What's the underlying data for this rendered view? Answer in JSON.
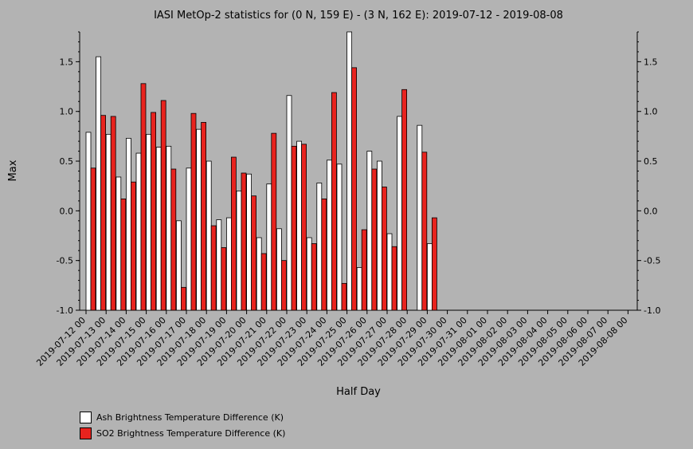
{
  "chart_data": {
    "type": "bar",
    "title": "IASI MetOp-2 statistics for (0 N, 159 E) - (3 N, 162 E): 2019-07-12 - 2019-08-08",
    "xlabel": "Half Day",
    "ylabel": "Max",
    "ylim": [
      -1.0,
      1.8
    ],
    "yticks": [
      -1.0,
      -0.5,
      0.0,
      0.5,
      1.0,
      1.5
    ],
    "ytick_labels": [
      "-1.0",
      "-0.5",
      "0.0",
      "0.5",
      "1.0",
      "1.5"
    ],
    "grid": false,
    "legend_position": "bottom-left",
    "x_ticks": [
      "2019-07-12 00",
      "2019-07-13 00",
      "2019-07-14 00",
      "2019-07-15 00",
      "2019-07-16 00",
      "2019-07-17 00",
      "2019-07-18 00",
      "2019-07-19 00",
      "2019-07-20 00",
      "2019-07-21 00",
      "2019-07-22 00",
      "2019-07-23 00",
      "2019-07-24 00",
      "2019-07-25 00",
      "2019-07-26 00",
      "2019-07-27 00",
      "2019-07-28 00",
      "2019-07-29 00",
      "2019-07-30 00",
      "2019-07-31 00",
      "2019-08-01 00",
      "2019-08-02 00",
      "2019-08-03 00",
      "2019-08-04 00",
      "2019-08-05 00",
      "2019-08-06 00",
      "2019-08-07 00",
      "2019-08-08 00"
    ],
    "series": [
      {
        "name": "Ash Brightness Temperature Difference (K)",
        "color": "#ffffff",
        "values": [
          0.79,
          1.55,
          0.77,
          0.34,
          0.73,
          0.58,
          0.77,
          0.64,
          0.65,
          -0.1,
          0.43,
          0.82,
          0.5,
          -0.09,
          -0.07,
          0.2,
          0.37,
          -0.27,
          0.27,
          -0.18,
          1.16,
          0.7,
          -0.27,
          0.28,
          0.51,
          0.47,
          1.8,
          -0.57,
          0.6,
          0.5,
          -0.23,
          0.95,
          null,
          0.86,
          -0.33,
          null,
          null,
          null,
          null,
          null,
          null,
          null,
          null,
          null,
          null,
          null,
          null,
          null,
          null,
          null,
          null,
          null,
          null,
          null,
          null,
          null
        ]
      },
      {
        "name": "SO2 Brightness Temperature Difference (K)",
        "color": "#e8231e",
        "values": [
          0.43,
          0.96,
          0.95,
          0.12,
          0.29,
          1.28,
          0.99,
          1.11,
          0.42,
          -0.77,
          0.98,
          0.89,
          -0.15,
          -0.37,
          0.54,
          0.38,
          0.15,
          -0.43,
          0.78,
          -0.5,
          0.65,
          0.67,
          -0.33,
          0.12,
          1.19,
          -0.73,
          1.44,
          -0.19,
          0.42,
          0.24,
          -0.36,
          1.22,
          null,
          0.59,
          -0.07,
          null,
          null,
          null,
          null,
          null,
          null,
          null,
          null,
          null,
          null,
          null,
          null,
          null,
          null,
          null,
          null,
          null,
          null,
          null,
          null,
          null
        ]
      }
    ]
  }
}
